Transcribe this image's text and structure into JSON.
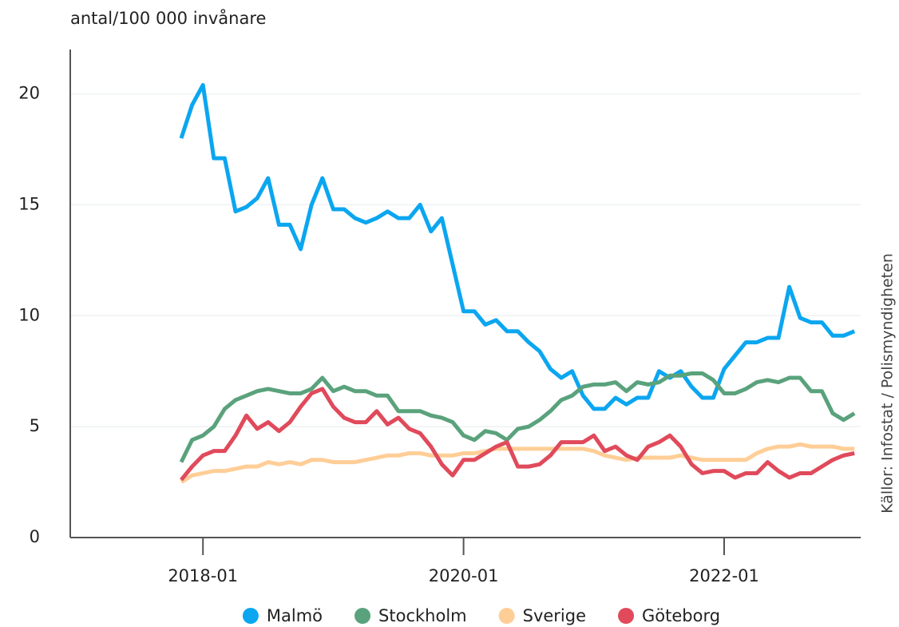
{
  "chart_data": {
    "type": "line",
    "y_label": "antal/100 000 invånare",
    "source": "Källor: Infostat / Polismyndigheten",
    "x": [
      "2017-11",
      "2017-12",
      "2018-01",
      "2018-02",
      "2018-03",
      "2018-04",
      "2018-05",
      "2018-06",
      "2018-07",
      "2018-08",
      "2018-09",
      "2018-10",
      "2018-11",
      "2018-12",
      "2019-01",
      "2019-02",
      "2019-03",
      "2019-04",
      "2019-05",
      "2019-06",
      "2019-07",
      "2019-08",
      "2019-09",
      "2019-10",
      "2019-11",
      "2019-12",
      "2020-01",
      "2020-02",
      "2020-03",
      "2020-04",
      "2020-05",
      "2020-06",
      "2020-07",
      "2020-08",
      "2020-09",
      "2020-10",
      "2020-11",
      "2020-12",
      "2021-01",
      "2021-02",
      "2021-03",
      "2021-04",
      "2021-05",
      "2021-06",
      "2021-07",
      "2021-08",
      "2021-09",
      "2021-10",
      "2021-11",
      "2021-12",
      "2022-01",
      "2022-02",
      "2022-03",
      "2022-04",
      "2022-05",
      "2022-06",
      "2022-07",
      "2022-08",
      "2022-09",
      "2022-10",
      "2022-11",
      "2022-12",
      "2023-01"
    ],
    "xticks": [
      "2018-01",
      "2020-01",
      "2022-01"
    ],
    "ylim": [
      0,
      22
    ],
    "yticks": [
      0,
      5,
      10,
      15,
      20
    ],
    "grid": true,
    "series": [
      {
        "name": "Malmö",
        "color": "#0ba6f0",
        "values": [
          18.0,
          19.5,
          20.4,
          17.1,
          17.1,
          14.7,
          14.9,
          15.3,
          16.2,
          14.1,
          14.1,
          13.0,
          15.0,
          16.2,
          14.8,
          14.8,
          14.4,
          14.2,
          14.4,
          14.7,
          14.4,
          14.4,
          15.0,
          13.8,
          14.4,
          12.3,
          10.2,
          10.2,
          9.6,
          9.8,
          9.3,
          9.3,
          8.8,
          8.4,
          7.6,
          7.2,
          7.5,
          6.4,
          5.8,
          5.8,
          6.3,
          6.0,
          6.3,
          6.3,
          7.5,
          7.2,
          7.5,
          6.8,
          6.3,
          6.3,
          7.6,
          8.2,
          8.8,
          8.8,
          9.0,
          9.0,
          11.3,
          9.9,
          9.7,
          9.7,
          9.1,
          9.1,
          9.3
        ]
      },
      {
        "name": "Stockholm",
        "color": "#5aa27c",
        "values": [
          3.4,
          4.4,
          4.6,
          5.0,
          5.8,
          6.2,
          6.4,
          6.6,
          6.7,
          6.6,
          6.5,
          6.5,
          6.7,
          7.2,
          6.6,
          6.8,
          6.6,
          6.6,
          6.4,
          6.4,
          5.7,
          5.7,
          5.7,
          5.5,
          5.4,
          5.2,
          4.6,
          4.4,
          4.8,
          4.7,
          4.4,
          4.9,
          5.0,
          5.3,
          5.7,
          6.2,
          6.4,
          6.8,
          6.9,
          6.9,
          7.0,
          6.6,
          7.0,
          6.9,
          7.0,
          7.3,
          7.3,
          7.4,
          7.4,
          7.1,
          6.5,
          6.5,
          6.7,
          7.0,
          7.1,
          7.0,
          7.2,
          7.2,
          6.6,
          6.6,
          5.6,
          5.3,
          5.6
        ]
      },
      {
        "name": "Sverige",
        "color": "#ffce96",
        "values": [
          2.5,
          2.8,
          2.9,
          3.0,
          3.0,
          3.1,
          3.2,
          3.2,
          3.4,
          3.3,
          3.4,
          3.3,
          3.5,
          3.5,
          3.4,
          3.4,
          3.4,
          3.5,
          3.6,
          3.7,
          3.7,
          3.8,
          3.8,
          3.7,
          3.7,
          3.7,
          3.8,
          3.8,
          3.9,
          4.0,
          4.0,
          4.0,
          4.0,
          4.0,
          4.0,
          4.0,
          4.0,
          4.0,
          3.9,
          3.7,
          3.6,
          3.5,
          3.6,
          3.6,
          3.6,
          3.6,
          3.7,
          3.6,
          3.5,
          3.5,
          3.5,
          3.5,
          3.5,
          3.8,
          4.0,
          4.1,
          4.1,
          4.2,
          4.1,
          4.1,
          4.1,
          4.0,
          4.0
        ]
      },
      {
        "name": "Göteborg",
        "color": "#e04a5b",
        "values": [
          2.6,
          3.2,
          3.7,
          3.9,
          3.9,
          4.6,
          5.5,
          4.9,
          5.2,
          4.8,
          5.2,
          5.9,
          6.5,
          6.7,
          5.9,
          5.4,
          5.2,
          5.2,
          5.7,
          5.1,
          5.4,
          4.9,
          4.7,
          4.1,
          3.3,
          2.8,
          3.5,
          3.5,
          3.8,
          4.1,
          4.3,
          3.2,
          3.2,
          3.3,
          3.7,
          4.3,
          4.3,
          4.3,
          4.6,
          3.9,
          4.1,
          3.7,
          3.5,
          4.1,
          4.3,
          4.6,
          4.1,
          3.3,
          2.9,
          3.0,
          3.0,
          2.7,
          2.9,
          2.9,
          3.4,
          3.0,
          2.7,
          2.9,
          2.9,
          3.2,
          3.5,
          3.7,
          3.8
        ]
      }
    ]
  }
}
